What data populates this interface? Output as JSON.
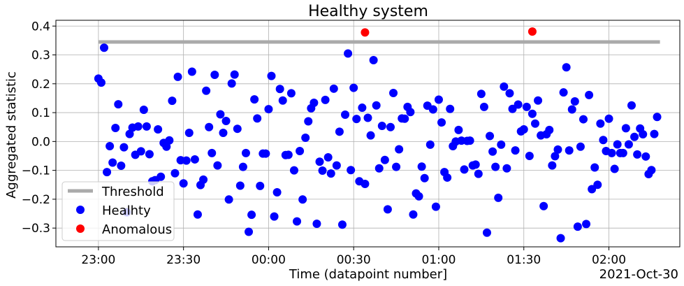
{
  "chart_data": {
    "type": "scatter",
    "title": "Healthy system",
    "xlabel": "Time (datapoint number]",
    "ylabel": "Aggregated statistic",
    "x_offset_label": "2021-Oct-30",
    "xlim": [
      "2021-10-29T22:45",
      "2021-10-30T02:25"
    ],
    "ylim": [
      -0.365,
      0.42
    ],
    "x_ticks": [
      {
        "t": "2021-10-29T23:00",
        "label": "23:00"
      },
      {
        "t": "2021-10-29T23:30",
        "label": "23:30"
      },
      {
        "t": "2021-10-30T00:00",
        "label": "00:00"
      },
      {
        "t": "2021-10-30T00:30",
        "label": "00:30"
      },
      {
        "t": "2021-10-30T01:00",
        "label": "01:00"
      },
      {
        "t": "2021-10-30T01:30",
        "label": "01:30"
      },
      {
        "t": "2021-10-30T02:00",
        "label": "02:00"
      }
    ],
    "y_ticks": [
      {
        "v": -0.3,
        "label": "−0.3"
      },
      {
        "v": -0.2,
        "label": "−0.2"
      },
      {
        "v": -0.1,
        "label": "−0.1"
      },
      {
        "v": 0.0,
        "label": "0.0"
      },
      {
        "v": 0.1,
        "label": "0.1"
      },
      {
        "v": 0.2,
        "label": "0.2"
      },
      {
        "v": 0.3,
        "label": "0.3"
      },
      {
        "v": 0.4,
        "label": "0.4"
      }
    ],
    "grid": true,
    "legend_position": "lower-left",
    "threshold": {
      "name": "Threshold",
      "color": "#aaaaaa",
      "value": 0.345,
      "x_start": "2021-10-29T23:00",
      "x_end": "2021-10-30T02:18"
    },
    "series": [
      {
        "name": "Healhty",
        "color": "#0000ff",
        "points": [
          [
            "2021-10-29T23:00",
            0.218
          ],
          [
            "2021-10-29T23:01",
            0.204
          ],
          [
            "2021-10-29T23:02",
            0.325
          ],
          [
            "2021-10-29T23:03",
            -0.106
          ],
          [
            "2021-10-29T23:04",
            -0.016
          ],
          [
            "2021-10-29T23:05",
            -0.073
          ],
          [
            "2021-10-29T23:06",
            0.047
          ],
          [
            "2021-10-29T23:07",
            0.129
          ],
          [
            "2021-10-29T23:08",
            -0.084
          ],
          [
            "2021-10-29T23:09",
            -0.02
          ],
          [
            "2021-10-29T23:10",
            -0.245
          ],
          [
            "2021-10-29T23:11",
            0.026
          ],
          [
            "2021-10-29T23:12",
            0.048
          ],
          [
            "2021-10-29T23:13",
            -0.046
          ],
          [
            "2021-10-29T23:14",
            0.052
          ],
          [
            "2021-10-29T23:15",
            -0.034
          ],
          [
            "2021-10-29T23:16",
            0.11
          ],
          [
            "2021-10-29T23:17",
            0.052
          ],
          [
            "2021-10-29T23:18",
            -0.044
          ],
          [
            "2021-10-29T23:19",
            -0.138
          ],
          [
            "2021-10-29T23:20",
            -0.134
          ],
          [
            "2021-10-29T23:21",
            0.042
          ],
          [
            "2021-10-29T23:22",
            -0.122
          ],
          [
            "2021-10-29T23:23",
            -0.005
          ],
          [
            "2021-10-29T23:24",
            -0.018
          ],
          [
            "2021-10-29T23:25",
            0.004
          ],
          [
            "2021-10-29T23:26",
            0.141
          ],
          [
            "2021-10-29T23:27",
            -0.11
          ],
          [
            "2021-10-29T23:28",
            0.224
          ],
          [
            "2021-10-29T23:29",
            -0.065
          ],
          [
            "2021-10-29T23:30",
            -0.145
          ],
          [
            "2021-10-29T23:31",
            -0.066
          ],
          [
            "2021-10-29T23:32",
            0.03
          ],
          [
            "2021-10-29T23:33",
            0.242
          ],
          [
            "2021-10-29T23:34",
            -0.062
          ],
          [
            "2021-10-29T23:35",
            -0.253
          ],
          [
            "2021-10-29T23:36",
            -0.151
          ],
          [
            "2021-10-29T23:37",
            -0.132
          ],
          [
            "2021-10-29T23:38",
            0.176
          ],
          [
            "2021-10-29T23:39",
            0.05
          ],
          [
            "2021-10-29T23:40",
            -0.04
          ],
          [
            "2021-10-29T23:41",
            0.231
          ],
          [
            "2021-10-29T23:42",
            -0.083
          ],
          [
            "2021-10-29T23:43",
            0.094
          ],
          [
            "2021-10-29T23:44",
            0.03
          ],
          [
            "2021-10-29T23:45",
            0.071
          ],
          [
            "2021-10-29T23:46",
            -0.201
          ],
          [
            "2021-10-29T23:47",
            0.201
          ],
          [
            "2021-10-29T23:48",
            0.232
          ],
          [
            "2021-10-29T23:49",
            0.044
          ],
          [
            "2021-10-29T23:50",
            -0.153
          ],
          [
            "2021-10-29T23:51",
            -0.088
          ],
          [
            "2021-10-29T23:52",
            -0.04
          ],
          [
            "2021-10-29T23:53",
            -0.313
          ],
          [
            "2021-10-29T23:54",
            -0.254
          ],
          [
            "2021-10-29T23:55",
            0.146
          ],
          [
            "2021-10-29T23:56",
            0.08
          ],
          [
            "2021-10-29T23:57",
            -0.154
          ],
          [
            "2021-10-29T23:58",
            -0.042
          ],
          [
            "2021-10-29T23:59",
            -0.042
          ],
          [
            "2021-10-30T00:00",
            0.112
          ],
          [
            "2021-10-30T00:01",
            0.227
          ],
          [
            "2021-10-30T00:02",
            -0.26
          ],
          [
            "2021-10-30T00:03",
            -0.176
          ],
          [
            "2021-10-30T00:04",
            0.182
          ],
          [
            "2021-10-30T00:05",
            0.142
          ],
          [
            "2021-10-30T00:06",
            -0.047
          ],
          [
            "2021-10-30T00:07",
            -0.046
          ],
          [
            "2021-10-30T00:08",
            0.167
          ],
          [
            "2021-10-30T00:09",
            -0.1
          ],
          [
            "2021-10-30T00:10",
            -0.277
          ],
          [
            "2021-10-30T00:11",
            -0.033
          ],
          [
            "2021-10-30T00:12",
            -0.201
          ],
          [
            "2021-10-30T00:13",
            0.013
          ],
          [
            "2021-10-30T00:14",
            0.07
          ],
          [
            "2021-10-30T00:15",
            0.115
          ],
          [
            "2021-10-30T00:16",
            0.134
          ],
          [
            "2021-10-30T00:17",
            -0.285
          ],
          [
            "2021-10-30T00:18",
            -0.07
          ],
          [
            "2021-10-30T00:19",
            -0.101
          ],
          [
            "2021-10-30T00:20",
            0.144
          ],
          [
            "2021-10-30T00:21",
            -0.055
          ],
          [
            "2021-10-30T00:22",
            -0.111
          ],
          [
            "2021-10-30T00:23",
            0.183
          ],
          [
            "2021-10-30T00:24",
            -0.083
          ],
          [
            "2021-10-30T00:25",
            0.034
          ],
          [
            "2021-10-30T00:26",
            -0.288
          ],
          [
            "2021-10-30T00:27",
            0.093
          ],
          [
            "2021-10-30T00:28",
            0.305
          ],
          [
            "2021-10-30T00:29",
            -0.099
          ],
          [
            "2021-10-30T00:30",
            0.186
          ],
          [
            "2021-10-30T00:31",
            0.078
          ],
          [
            "2021-10-30T00:32",
            -0.138
          ],
          [
            "2021-10-30T00:33",
            0.117
          ],
          [
            "2021-10-30T00:34",
            -0.147
          ],
          [
            "2021-10-30T00:35",
            0.082
          ],
          [
            "2021-10-30T00:36",
            0.021
          ],
          [
            "2021-10-30T00:37",
            0.282
          ],
          [
            "2021-10-30T00:38",
            0.125
          ],
          [
            "2021-10-30T00:39",
            -0.093
          ],
          [
            "2021-10-30T00:40",
            0.054
          ],
          [
            "2021-10-30T00:41",
            -0.064
          ],
          [
            "2021-10-30T00:42",
            -0.235
          ],
          [
            "2021-10-30T00:43",
            0.05
          ],
          [
            "2021-10-30T00:44",
            0.168
          ],
          [
            "2021-10-30T00:45",
            -0.088
          ],
          [
            "2021-10-30T00:46",
            -0.027
          ],
          [
            "2021-10-30T00:47",
            0.08
          ],
          [
            "2021-10-30T00:48",
            0.079
          ],
          [
            "2021-10-30T00:49",
            0.12
          ],
          [
            "2021-10-30T00:50",
            0.102
          ],
          [
            "2021-10-30T00:51",
            -0.253
          ],
          [
            "2021-10-30T00:52",
            -0.18
          ],
          [
            "2021-10-30T00:53",
            -0.19
          ],
          [
            "2021-10-30T00:54",
            -0.087
          ],
          [
            "2021-10-30T00:55",
            -0.127
          ],
          [
            "2021-10-30T00:56",
            0.124
          ],
          [
            "2021-10-30T00:57",
            -0.011
          ],
          [
            "2021-10-30T00:58",
            0.111
          ],
          [
            "2021-10-30T00:59",
            -0.226
          ],
          [
            "2021-10-30T01:00",
            0.145
          ],
          [
            "2021-10-30T01:01",
            0.066
          ],
          [
            "2021-10-30T01:02",
            -0.106
          ],
          [
            "2021-10-30T01:03",
            -0.125
          ],
          [
            "2021-10-30T01:04",
            0.113
          ],
          [
            "2021-10-30T01:05",
            -0.016
          ],
          [
            "2021-10-30T01:06",
            0.0
          ],
          [
            "2021-10-30T01:07",
            0.04
          ],
          [
            "2021-10-30T01:08",
            0.003
          ],
          [
            "2021-10-30T01:09",
            -0.097
          ],
          [
            "2021-10-30T01:10",
            0.002
          ],
          [
            "2021-10-30T01:11",
            0.003
          ],
          [
            "2021-10-30T01:12",
            -0.083
          ],
          [
            "2021-10-30T01:13",
            -0.08
          ],
          [
            "2021-10-30T01:14",
            -0.112
          ],
          [
            "2021-10-30T01:15",
            0.165
          ],
          [
            "2021-10-30T01:16",
            0.12
          ],
          [
            "2021-10-30T01:17",
            -0.316
          ],
          [
            "2021-10-30T01:18",
            0.019
          ],
          [
            "2021-10-30T01:19",
            -0.035
          ],
          [
            "2021-10-30T01:20",
            -0.088
          ],
          [
            "2021-10-30T01:21",
            -0.195
          ],
          [
            "2021-10-30T01:22",
            -0.011
          ],
          [
            "2021-10-30T01:23",
            0.19
          ],
          [
            "2021-10-30T01:24",
            -0.093
          ],
          [
            "2021-10-30T01:25",
            0.167
          ],
          [
            "2021-10-30T01:26",
            0.113
          ],
          [
            "2021-10-30T01:27",
            -0.031
          ],
          [
            "2021-10-30T01:28",
            0.128
          ],
          [
            "2021-10-30T01:29",
            0.035
          ],
          [
            "2021-10-30T01:30",
            0.042
          ],
          [
            "2021-10-30T01:31",
            0.12
          ],
          [
            "2021-10-30T01:32",
            -0.05
          ],
          [
            "2021-10-30T01:33",
            0.096
          ],
          [
            "2021-10-30T01:34",
            0.062
          ],
          [
            "2021-10-30T01:35",
            0.142
          ],
          [
            "2021-10-30T01:36",
            0.021
          ],
          [
            "2021-10-30T01:37",
            -0.224
          ],
          [
            "2021-10-30T01:38",
            0.025
          ],
          [
            "2021-10-30T01:39",
            0.04
          ],
          [
            "2021-10-30T01:40",
            -0.083
          ],
          [
            "2021-10-30T01:41",
            -0.051
          ],
          [
            "2021-10-30T01:42",
            -0.028
          ],
          [
            "2021-10-30T01:43",
            -0.335
          ],
          [
            "2021-10-30T01:44",
            0.17
          ],
          [
            "2021-10-30T01:45",
            0.257
          ],
          [
            "2021-10-30T01:46",
            -0.031
          ],
          [
            "2021-10-30T01:47",
            0.111
          ],
          [
            "2021-10-30T01:48",
            0.139
          ],
          [
            "2021-10-30T01:49",
            -0.295
          ],
          [
            "2021-10-30T01:50",
            -0.018
          ],
          [
            "2021-10-30T01:51",
            0.077
          ],
          [
            "2021-10-30T01:52",
            -0.286
          ],
          [
            "2021-10-30T01:53",
            0.161
          ],
          [
            "2021-10-30T01:54",
            -0.165
          ],
          [
            "2021-10-30T01:55",
            -0.09
          ],
          [
            "2021-10-30T01:56",
            -0.15
          ],
          [
            "2021-10-30T01:57",
            0.062
          ],
          [
            "2021-10-30T01:58",
            0.005
          ],
          [
            "2021-10-30T01:59",
            -0.033
          ],
          [
            "2021-10-30T02:00",
            0.079
          ],
          [
            "2021-10-30T02:01",
            -0.04
          ],
          [
            "2021-10-30T02:02",
            -0.095
          ],
          [
            "2021-10-30T02:03",
            -0.01
          ],
          [
            "2021-10-30T02:04",
            -0.04
          ],
          [
            "2021-10-30T02:05",
            -0.04
          ],
          [
            "2021-10-30T02:06",
            0.046
          ],
          [
            "2021-10-30T02:07",
            -0.01
          ],
          [
            "2021-10-30T02:08",
            0.125
          ],
          [
            "2021-10-30T02:09",
            0.016
          ],
          [
            "2021-10-30T02:10",
            -0.045
          ],
          [
            "2021-10-30T02:11",
            0.045
          ],
          [
            "2021-10-30T02:12",
            0.025
          ],
          [
            "2021-10-30T02:13",
            -0.052
          ],
          [
            "2021-10-30T02:14",
            -0.113
          ],
          [
            "2021-10-30T02:15",
            -0.099
          ],
          [
            "2021-10-30T02:16",
            0.026
          ],
          [
            "2021-10-30T02:17",
            0.085
          ]
        ]
      },
      {
        "name": "Anomalous",
        "color": "#ff0000",
        "points": [
          [
            "2021-10-30T00:34",
            0.378
          ],
          [
            "2021-10-30T01:33",
            0.381
          ]
        ]
      }
    ]
  }
}
